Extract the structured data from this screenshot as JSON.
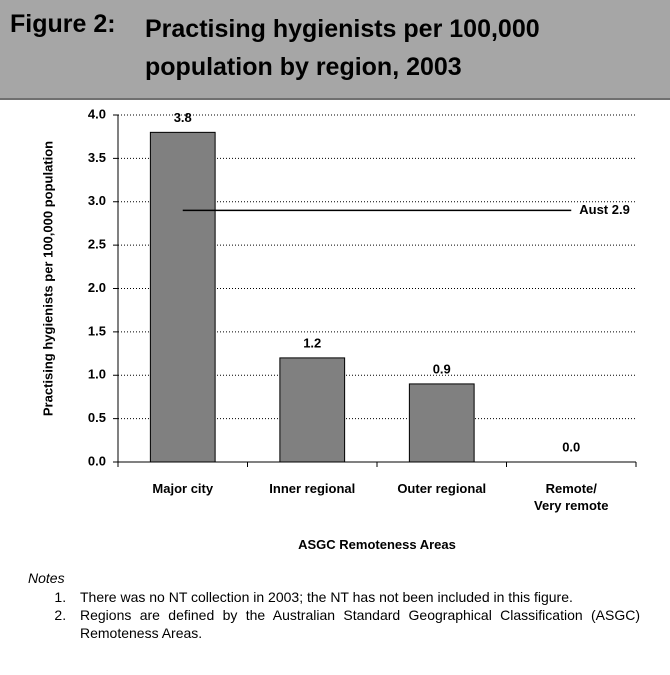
{
  "figure_label": "Figure 2:",
  "chart_data": {
    "type": "bar",
    "title": "Practising hygienists per 100,000 population by region, 2003",
    "ylabel": "Practising hygienists per 100,000 population",
    "xlabel": "ASGC Remoteness Areas",
    "categories": [
      "Major city",
      "Inner regional",
      "Outer regional",
      "Remote/\nVery remote"
    ],
    "values": [
      3.8,
      1.2,
      0.9,
      0
    ],
    "value_labels": [
      "3.8",
      "1.2",
      "0.9",
      "0.0"
    ],
    "color": "#808080",
    "ylim": [
      0,
      4
    ],
    "yticks": [
      {
        "value": 0,
        "label": "0.0"
      },
      0.5,
      {
        "value": 1,
        "label": "1.0"
      },
      1.5,
      {
        "value": 2,
        "label": "2.0"
      },
      2.5,
      {
        "value": 3,
        "label": "3.0"
      },
      3.5,
      {
        "value": 4,
        "label": "4.0"
      }
    ],
    "grid": true,
    "reference_line": {
      "value": 2.9,
      "label": "Aust 2.9"
    }
  },
  "notes": {
    "heading": "Notes",
    "items": [
      "There was no NT collection in 2003; the NT has not been included in this figure.",
      "Regions are defined by the Australian Standard Geographical Classification (ASGC) Remoteness Areas."
    ]
  }
}
